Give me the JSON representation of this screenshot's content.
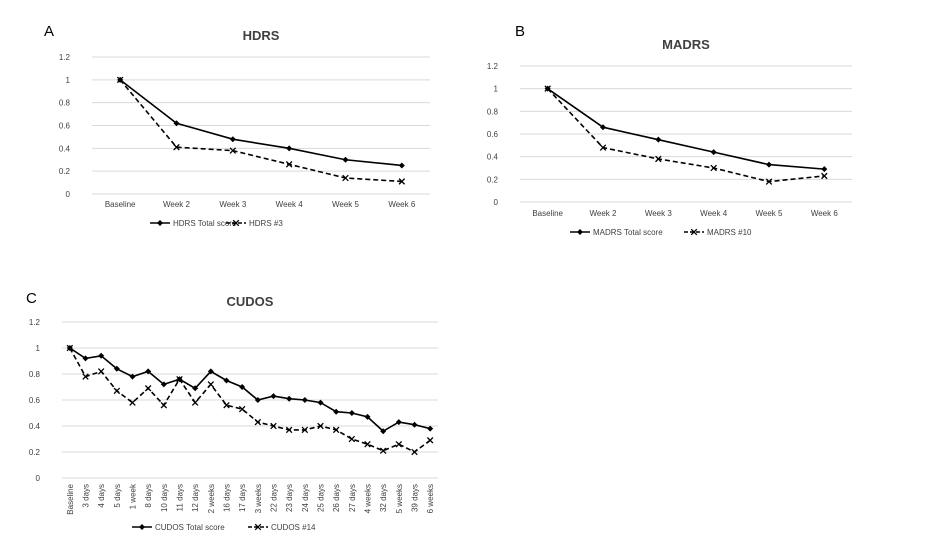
{
  "chart_data": [
    {
      "panel_label": "A",
      "type": "line",
      "title": "HDRS",
      "categories": [
        "Baseline",
        "Week 2",
        "Week 3",
        "Week 4",
        "Week 5",
        "Week 6"
      ],
      "ylim": [
        0,
        1.2
      ],
      "yticks": [
        "0",
        "0.2",
        "0.4",
        "0.6",
        "0.8",
        "1",
        "1.2"
      ],
      "grid": true,
      "legend": "bottom",
      "series": [
        {
          "name": "HDRS Total score",
          "style": "solid-diamond",
          "values": [
            1.0,
            0.62,
            0.48,
            0.4,
            0.3,
            0.25
          ]
        },
        {
          "name": "HDRS #3",
          "style": "dashed-cross",
          "values": [
            1.0,
            0.41,
            0.38,
            0.26,
            0.14,
            0.11
          ]
        }
      ]
    },
    {
      "panel_label": "B",
      "type": "line",
      "title": "MADRS",
      "categories": [
        "Baseline",
        "Week 2",
        "Week 3",
        "Week 4",
        "Week 5",
        "Week 6"
      ],
      "ylim": [
        0,
        1.2
      ],
      "yticks": [
        "0",
        "0.2",
        "0.4",
        "0.6",
        "0.8",
        "1",
        "1.2"
      ],
      "grid": true,
      "legend": "bottom",
      "series": [
        {
          "name": "MADRS Total score",
          "style": "solid-diamond",
          "values": [
            1.0,
            0.66,
            0.55,
            0.44,
            0.33,
            0.29
          ]
        },
        {
          "name": "MADRS #10",
          "style": "dashed-cross",
          "values": [
            1.0,
            0.48,
            0.38,
            0.3,
            0.18,
            0.23
          ]
        }
      ]
    },
    {
      "panel_label": "C",
      "type": "line",
      "title": "CUDOS",
      "categories": [
        "Baseline",
        "3 days",
        "4 days",
        "5 days",
        "1 week",
        "8 days",
        "10 days",
        "11 days",
        "12 days",
        "2 weeks",
        "16 days",
        "17 days",
        "3 weeks",
        "22 days",
        "23 days",
        "24 days",
        "25 days",
        "26 days",
        "27 days",
        "4 weeks",
        "32 days",
        "5 weeks",
        "39 days",
        "6 weeks"
      ],
      "ylim": [
        0,
        1.2
      ],
      "yticks": [
        "0",
        "0.2",
        "0.4",
        "0.6",
        "0.8",
        "1",
        "1.2"
      ],
      "grid": true,
      "legend": "bottom",
      "series": [
        {
          "name": "CUDOS Total score",
          "style": "solid-diamond",
          "values": [
            1.0,
            0.92,
            0.94,
            0.84,
            0.78,
            0.82,
            0.72,
            0.76,
            0.69,
            0.82,
            0.75,
            0.7,
            0.6,
            0.63,
            0.61,
            0.6,
            0.58,
            0.51,
            0.5,
            0.47,
            0.36,
            0.43,
            0.41,
            0.38
          ]
        },
        {
          "name": "CUDOS #14",
          "style": "dashed-cross",
          "values": [
            1.0,
            0.78,
            0.82,
            0.67,
            0.58,
            0.69,
            0.56,
            0.76,
            0.58,
            0.72,
            0.56,
            0.53,
            0.43,
            0.4,
            0.37,
            0.37,
            0.4,
            0.37,
            0.3,
            0.26,
            0.21,
            0.26,
            0.2,
            0.29
          ]
        }
      ]
    }
  ]
}
